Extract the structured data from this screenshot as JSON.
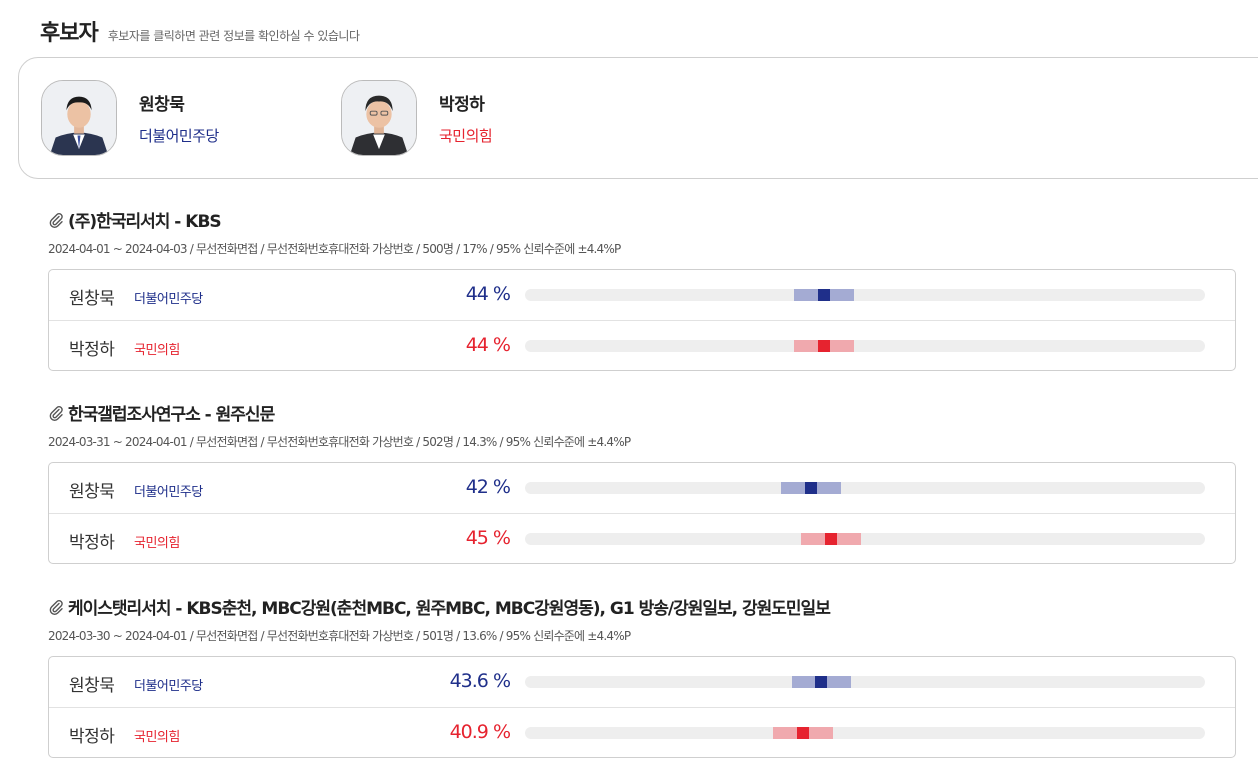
{
  "header": {
    "title": "후보자",
    "hint": "후보자를 클릭하면 관련 정보를 확인하실 수 있습니다"
  },
  "colors": {
    "democratic": "#1f2f8a",
    "democratic_range": "#a4abd3",
    "ppp": "#e6232f",
    "ppp_range": "#f0a9ae"
  },
  "candidates": [
    {
      "name": "원창묵",
      "party": "더불어민주당",
      "color": "#1f2f8a"
    },
    {
      "name": "박정하",
      "party": "국민의힘",
      "color": "#e6232f"
    }
  ],
  "polls": [
    {
      "title": "(주)한국리서치 - KBS",
      "meta": "2024-04-01 ~ 2024-04-03 / 무선전화면접 / 무선전화번호휴대전화 가상번호 / 500명 / 17% / 95% 신뢰수준에 ±4.4%P",
      "margin": 4.4,
      "results": [
        {
          "name": "원창묵",
          "party": "더불어민주당",
          "pct": "44 %",
          "value": 44
        },
        {
          "name": "박정하",
          "party": "국민의힘",
          "pct": "44 %",
          "value": 44
        }
      ]
    },
    {
      "title": "한국갤럽조사연구소 - 원주신문",
      "meta": "2024-03-31 ~ 2024-04-01 / 무선전화면접 / 무선전화번호휴대전화 가상번호 / 502명 / 14.3% / 95% 신뢰수준에 ±4.4%P",
      "margin": 4.4,
      "results": [
        {
          "name": "원창묵",
          "party": "더불어민주당",
          "pct": "42 %",
          "value": 42
        },
        {
          "name": "박정하",
          "party": "국민의힘",
          "pct": "45 %",
          "value": 45
        }
      ]
    },
    {
      "title": "케이스탯리서치 - KBS춘천, MBC강원(춘천MBC, 원주MBC, MBC강원영동), G1 방송/강원일보, 강원도민일보",
      "meta": "2024-03-30 ~ 2024-04-01 / 무선전화면접 / 무선전화번호휴대전화 가상번호 / 501명 / 13.6% / 95% 신뢰수준에 ±4.4%P",
      "margin": 4.4,
      "results": [
        {
          "name": "원창묵",
          "party": "더불어민주당",
          "pct": "43.6 %",
          "value": 43.6
        },
        {
          "name": "박정하",
          "party": "국민의힘",
          "pct": "40.9 %",
          "value": 40.9
        }
      ]
    }
  ]
}
